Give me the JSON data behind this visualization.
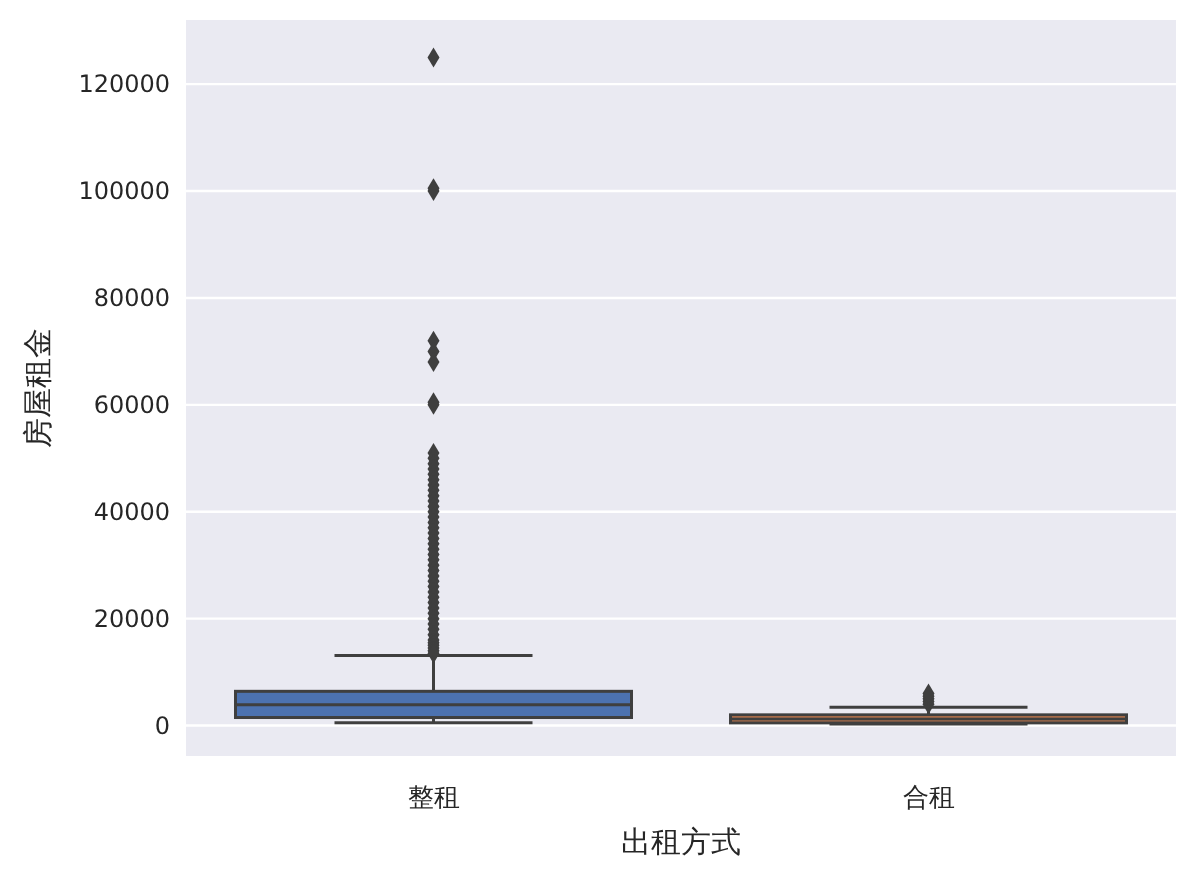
{
  "chart_data": {
    "type": "box",
    "xlabel": "出租方式",
    "ylabel": "房屋租金",
    "categories": [
      "整租",
      "合租"
    ],
    "colors": [
      "#4c72b0",
      "#dd8452"
    ],
    "boxes": [
      {
        "low": 500,
        "q1": 1500,
        "median": 3900,
        "q3": 6400,
        "high": 13100,
        "outliers": [
          125000,
          100500,
          100000,
          72000,
          70000,
          68000,
          60500,
          60000,
          51000,
          50000,
          49000,
          48000,
          47000,
          46000,
          45000,
          44000,
          43000,
          42000,
          41000,
          40000,
          39000,
          38000,
          37000,
          36000,
          35000,
          34000,
          33000,
          32000,
          31000,
          30000,
          29000,
          28000,
          27000,
          26000,
          25000,
          24000,
          23000,
          22000,
          21000,
          20000,
          19000,
          18000,
          17000,
          16000,
          15500,
          15000,
          14500,
          14000,
          13500
        ]
      },
      {
        "low": 300,
        "q1": 500,
        "median": 1200,
        "q3": 2000,
        "high": 3400,
        "outliers": [
          4000,
          4500,
          5000,
          5500,
          6000
        ]
      }
    ],
    "ylim": [
      -5700,
      132000
    ],
    "yticks": [
      0,
      20000,
      40000,
      60000,
      80000,
      100000,
      120000
    ],
    "grid": "y",
    "marker": "diamond"
  }
}
